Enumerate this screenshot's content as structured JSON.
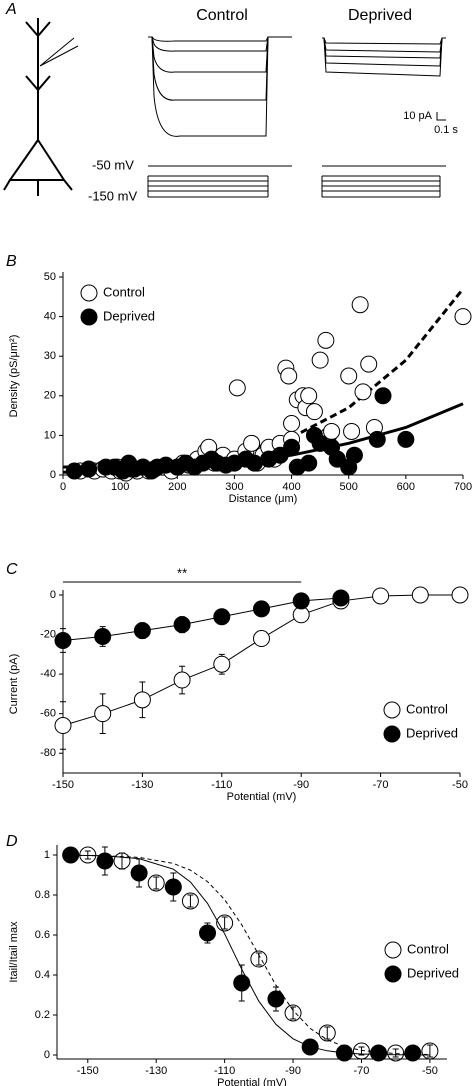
{
  "panel_a": {
    "label": "A",
    "conditions": [
      "Control",
      "Deprived"
    ],
    "scale_current": "10 pA",
    "scale_time": "0.1 s",
    "voltage_labels": [
      "-50 mV",
      "-150 mV"
    ]
  },
  "chart_data": [
    {
      "type": "scatter",
      "panel_label": "B",
      "x_label": "Distance (μm)",
      "y_label": "Density (pS/μm²)",
      "xlim": [
        0,
        700
      ],
      "xticks": [
        0,
        100,
        200,
        300,
        400,
        500,
        600,
        700
      ],
      "ylim": [
        0,
        50
      ],
      "yticks": [
        0,
        10,
        20,
        30,
        40,
        50
      ],
      "legend": "upper left",
      "series": [
        {
          "name": "Control",
          "color": "#000000",
          "marker": "open",
          "x": [
            30,
            55,
            70,
            85,
            95,
            100,
            110,
            120,
            130,
            140,
            150,
            160,
            175,
            190,
            200,
            210,
            220,
            235,
            250,
            255,
            265,
            280,
            300,
            305,
            320,
            330,
            340,
            350,
            360,
            370,
            380,
            390,
            395,
            400,
            400,
            410,
            420,
            425,
            430,
            440,
            450,
            460,
            465,
            470,
            480,
            500,
            505,
            520,
            525,
            535,
            545,
            700
          ],
          "values": [
            1,
            1,
            1.5,
            1,
            2,
            1,
            0.5,
            1.5,
            1,
            2,
            1,
            1.5,
            2,
            1,
            2,
            3,
            2.5,
            4,
            6,
            7,
            3,
            5,
            4,
            22,
            6,
            8,
            3,
            5,
            7,
            4,
            8,
            27,
            25,
            13,
            9,
            19,
            20,
            17,
            20,
            16,
            29,
            34,
            10,
            11,
            4,
            25,
            11,
            43,
            21,
            28,
            12,
            40
          ],
          "fit": {
            "style": "dashed",
            "x": [
              0,
              100,
              200,
              300,
              400,
              500,
              600,
              700
            ],
            "y": [
              2,
              2.5,
              3.5,
              5.5,
              9.5,
              17,
              29,
              47
            ]
          }
        },
        {
          "name": "Deprived",
          "color": "#000000",
          "marker": "filled",
          "x": [
            20,
            45,
            75,
            90,
            105,
            115,
            125,
            140,
            155,
            165,
            180,
            200,
            215,
            230,
            245,
            260,
            270,
            285,
            300,
            320,
            335,
            360,
            380,
            400,
            410,
            430,
            440,
            450,
            470,
            480,
            500,
            510,
            550,
            560,
            600
          ],
          "values": [
            1,
            1.5,
            2,
            2,
            1,
            3,
            1.5,
            2,
            1,
            2,
            2.5,
            2,
            3,
            2,
            3,
            4,
            3,
            2.5,
            3,
            4,
            3,
            4,
            5,
            7,
            2,
            3,
            10,
            8,
            7,
            4,
            2,
            5,
            9,
            20,
            9
          ],
          "fit": {
            "style": "solid",
            "x": [
              0,
              100,
              200,
              300,
              400,
              500,
              600,
              700
            ],
            "y": [
              0.7,
              1.3,
              2.1,
              3.3,
              5,
              8,
              12,
              18
            ]
          }
        }
      ]
    },
    {
      "type": "line",
      "panel_label": "C",
      "x_label": "Potential (mV)",
      "y_label": "Current (pA)",
      "xlim": [
        -150,
        -50
      ],
      "xticks": [
        -150,
        -130,
        -110,
        -90,
        -70,
        -50
      ],
      "ylim": [
        -90,
        0
      ],
      "yticks": [
        -80,
        -60,
        -40,
        -20,
        0
      ],
      "legend": "lower right",
      "significance": {
        "label": "**",
        "xrange": [
          -150,
          -90
        ]
      },
      "series": [
        {
          "name": "Control",
          "color": "#000000",
          "marker": "open",
          "x": [
            -150,
            -140,
            -130,
            -120,
            -110,
            -100,
            -90,
            -80,
            -70,
            -60,
            -50
          ],
          "values": [
            -66,
            -60,
            -53,
            -43,
            -35,
            -22,
            -10,
            -3,
            -0.5,
            0,
            0
          ],
          "errors": [
            12,
            10,
            9,
            7,
            5,
            3,
            2,
            1,
            1,
            1,
            1
          ]
        },
        {
          "name": "Deprived",
          "color": "#000000",
          "marker": "filled",
          "x": [
            -150,
            -140,
            -130,
            -120,
            -110,
            -100,
            -90,
            -80
          ],
          "values": [
            -23,
            -21,
            -18,
            -15,
            -11,
            -7,
            -3,
            -1.5
          ],
          "errors": [
            6,
            5,
            4,
            4,
            2,
            2,
            1,
            1
          ]
        }
      ]
    },
    {
      "type": "scatter",
      "panel_label": "D",
      "x_label": "Potential (mV)",
      "y_label": "Itail/Itail max",
      "xlim": [
        -159,
        -45
      ],
      "xticks": [
        -150,
        -130,
        -110,
        -90,
        -70,
        -50
      ],
      "ylim": [
        -0.02,
        1.05
      ],
      "yticks": [
        0,
        0.2,
        0.4,
        0.6,
        0.8,
        1
      ],
      "legend": "center right",
      "series": [
        {
          "name": "Control",
          "color": "#000000",
          "marker": "open",
          "x": [
            -150,
            -140,
            -130,
            -120,
            -110,
            -100,
            -90,
            -80,
            -70,
            -60,
            -50
          ],
          "values": [
            1,
            0.97,
            0.86,
            0.77,
            0.66,
            0.48,
            0.21,
            0.11,
            0.02,
            0.01,
            0.02
          ],
          "errors": [
            0.02,
            0.04,
            0.03,
            0.03,
            0.03,
            0.03,
            0.03,
            0.03,
            0.02,
            0.02,
            0.03
          ],
          "fit": {
            "style": "dashed",
            "x": [
              -155,
              -145,
              -135,
              -125,
              -120,
              -115,
              -110,
              -105,
              -100,
              -95,
              -90,
              -85,
              -80,
              -75,
              -70,
              -60,
              -50
            ],
            "y": [
              0.999,
              0.996,
              0.988,
              0.958,
              0.924,
              0.867,
              0.777,
              0.651,
              0.5,
              0.349,
              0.223,
              0.133,
              0.076,
              0.042,
              0.023,
              0.007,
              0.002
            ]
          }
        },
        {
          "name": "Deprived",
          "color": "#000000",
          "marker": "filled",
          "x": [
            -155,
            -145,
            -135,
            -125,
            -115,
            -105,
            -95,
            -85,
            -75,
            -65,
            -55
          ],
          "values": [
            1,
            0.97,
            0.91,
            0.84,
            0.61,
            0.36,
            0.28,
            0.04,
            0.01,
            0.01,
            0.01
          ],
          "errors": [
            0.02,
            0.07,
            0.07,
            0.07,
            0.05,
            0.09,
            0.06,
            0.03,
            0.02,
            0.02,
            0.02
          ],
          "fit": {
            "style": "solid",
            "x": [
              -155,
              -145,
              -135,
              -125,
              -120,
              -115,
              -110,
              -105,
              -100,
              -95,
              -90,
              -85,
              -80,
              -75,
              -70,
              -60,
              -50
            ],
            "y": [
              0.999,
              0.996,
              0.982,
              0.929,
              0.865,
              0.758,
              0.606,
              0.429,
              0.269,
              0.153,
              0.081,
              0.041,
              0.021,
              0.01,
              0.005,
              0.001,
              0
            ]
          }
        }
      ]
    }
  ]
}
